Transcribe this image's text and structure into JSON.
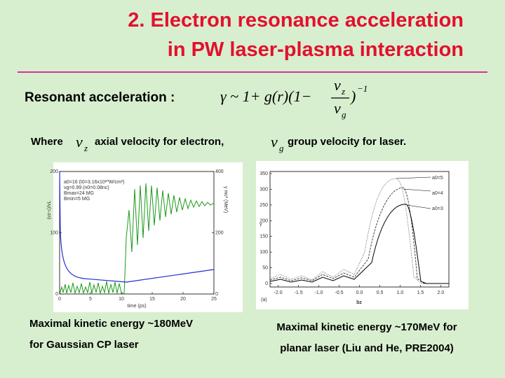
{
  "header": {
    "title_lines": [
      "2. Electron resonance acceleration",
      "in PW laser-plasma interaction"
    ]
  },
  "formula": {
    "label": "Resonant acceleration :",
    "lhs": "γ ~ 1+ g(r)(1−",
    "num": "v",
    "num_sub": "z",
    "den": "v",
    "den_sub": "g",
    "close": ")",
    "power": "−1"
  },
  "where": {
    "lead": "Where",
    "v1": "v",
    "v1_sub": "z",
    "text1": "axial velocity for electron,",
    "v2": "v",
    "v2_sub": "g",
    "text2": "group velocity for laser."
  },
  "left_figure": {
    "yticks": [
      0,
      100,
      200
    ],
    "y2ticks": [
      0,
      200,
      400
    ],
    "xticks": [
      0,
      5,
      10,
      15,
      20,
      25
    ],
    "xlabel": "time (ps)",
    "ylabel": "(vz-c)/vL",
    "y2label": "γ mc² (MeV)",
    "annotations": [
      "a0=16 (I0=3.16x10²⁰W/cm²)",
      "vg=0.99 (n0=0.08nc)",
      "Bmax=24 MG",
      "Bmin=5 MG"
    ]
  },
  "right_figure": {
    "yticks": [
      0,
      50,
      100,
      150,
      200,
      250,
      300,
      350
    ],
    "xticks": [
      {
        "value": -2,
        "label": "-2.0"
      },
      {
        "value": -1.5,
        "label": "-1.5"
      },
      {
        "value": -1,
        "label": "-1.0"
      },
      {
        "value": -0.5,
        "label": "-0.5"
      },
      {
        "value": 0,
        "label": "0.0"
      },
      {
        "value": 0.5,
        "label": "0.5"
      },
      {
        "value": 1,
        "label": "1.0"
      },
      {
        "value": 1.5,
        "label": "1.5"
      },
      {
        "value": 2,
        "label": "2.0"
      }
    ],
    "xlabel": "bz",
    "ylabel": "γ",
    "legend": [
      "a0=5",
      "a0=4",
      "a0=3"
    ],
    "panel": "(a)"
  },
  "captions": {
    "left": [
      "Maximal kinetic energy  ~180MeV",
      "for Gaussian CP laser"
    ],
    "right": [
      "Maximal kinetic energy ~170MeV for",
      "planar laser (Liu and He, PRE2004)"
    ]
  }
}
